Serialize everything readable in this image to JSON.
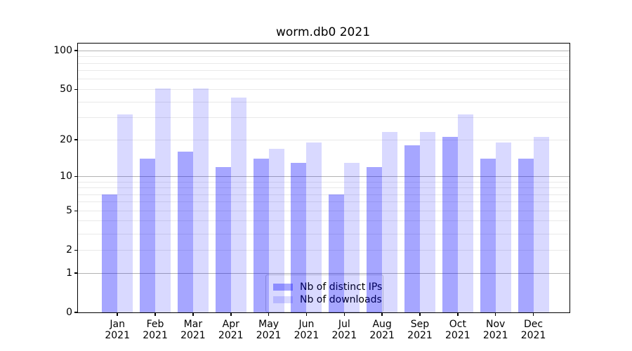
{
  "title": "worm.db0 2021",
  "chart_data": {
    "type": "bar",
    "categories": [
      "Jan",
      "Feb",
      "Mar",
      "Apr",
      "May",
      "Jun",
      "Jul",
      "Aug",
      "Sep",
      "Oct",
      "Nov",
      "Dec"
    ],
    "year": "2021",
    "series": [
      {
        "name": "Nb of distinct IPs",
        "color": "rgba(0,0,255,0.35)",
        "color_hex": "#a6a6ff",
        "values": [
          7,
          14,
          16,
          12,
          14,
          13,
          7,
          12,
          18,
          21,
          14,
          14
        ]
      },
      {
        "name": "Nb of downloads",
        "color": "rgba(0,0,255,0.15)",
        "color_hex": "#d9d9ff",
        "values": [
          32,
          51,
          51,
          43,
          17,
          19,
          13,
          23,
          23,
          32,
          19,
          21
        ]
      }
    ],
    "yscale": "log1p",
    "ylim": [
      0,
      114
    ],
    "y_ticks": [
      0,
      1,
      2,
      5,
      10,
      20,
      50,
      100
    ],
    "major_gridlines": [
      1,
      10,
      100
    ],
    "minor_gridlines": [
      2,
      3,
      4,
      5,
      6,
      7,
      8,
      9,
      20,
      30,
      40,
      50,
      60,
      70,
      80,
      90
    ],
    "grid": "on",
    "legend_position": "lower center",
    "xlabel": "",
    "ylabel": ""
  },
  "legend": {
    "entries": [
      "Nb of distinct IPs",
      "Nb of downloads"
    ]
  },
  "colors": {
    "major_grid": "#b3b3b3",
    "minor_grid": "#e9e9e9",
    "axis": "#000000",
    "background": "#ffffff"
  }
}
